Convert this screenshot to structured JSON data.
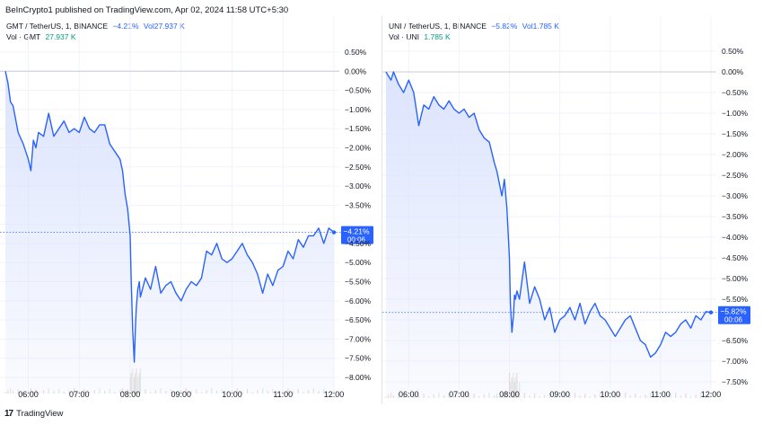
{
  "header": "BeInCrypto1 published on TradingView.com, Apr 02, 2024 11:58 UTC+5:30",
  "footer": {
    "logo": "17",
    "brand": "TradingView"
  },
  "colors": {
    "line": "#2962ff",
    "fill_top": "#dce4fd",
    "grid": "#f0f3fa",
    "axis_text": "#131722",
    "volume": "#089981",
    "price_label_bg": "#2962ff"
  },
  "panels": [
    {
      "id": "gmt",
      "legend": {
        "symbol": "GMT / TetherUS, 1, BINANCE",
        "change": "−4.21%",
        "vol_label_inline": "Vol",
        "vol_value_inline": "27.937 K",
        "vol_label": "Vol · GMT",
        "vol_value": "27.937 K"
      },
      "price_label": {
        "value": "−4.21%",
        "time": "00:06"
      }
    },
    {
      "id": "uni",
      "legend": {
        "symbol": "UNI / TetherUS, 1, BINANCE",
        "change": "−5.82%",
        "vol_label_inline": "Vol",
        "vol_value_inline": "1.785 K",
        "vol_label": "Vol · UNI",
        "vol_value": "1.785 K"
      },
      "price_label": {
        "value": "−5.82%",
        "time": "00:06"
      }
    }
  ],
  "chart_data": [
    {
      "type": "line",
      "title": "GMT / TetherUS, 1, BINANCE",
      "yunit": "%",
      "ylim": [
        -8.0,
        0.5
      ],
      "yticks": [
        "0.50%",
        "0.00%",
        "−0.50%",
        "−1.00%",
        "−1.50%",
        "−2.00%",
        "−2.50%",
        "−3.00%",
        "−3.50%",
        "−4.00%",
        "−4.50%",
        "−5.00%",
        "−5.50%",
        "−6.00%",
        "−6.50%",
        "−7.00%",
        "−7.50%",
        "−8.00%"
      ],
      "ytick_values": [
        0.5,
        0,
        -0.5,
        -1,
        -1.5,
        -2,
        -2.5,
        -3,
        -3.5,
        -4,
        -4.5,
        -5,
        -5.5,
        -6,
        -6.5,
        -7,
        -7.5,
        -8
      ],
      "xticks": [
        "06:00",
        "07:00",
        "08:00",
        "09:00",
        "10:00",
        "11:00",
        "12:00"
      ],
      "xtick_values": [
        6,
        7,
        8,
        9,
        10,
        11,
        12
      ],
      "xlim": [
        5.55,
        12.0
      ],
      "last_value": -4.21,
      "x": [
        5.55,
        5.6,
        5.65,
        5.7,
        5.8,
        5.9,
        6.0,
        6.05,
        6.1,
        6.15,
        6.2,
        6.3,
        6.4,
        6.5,
        6.6,
        6.7,
        6.8,
        6.9,
        7.0,
        7.1,
        7.2,
        7.3,
        7.4,
        7.5,
        7.6,
        7.7,
        7.8,
        7.85,
        7.9,
        7.95,
        8.0,
        8.02,
        8.05,
        8.08,
        8.1,
        8.12,
        8.15,
        8.18,
        8.2,
        8.3,
        8.4,
        8.5,
        8.6,
        8.7,
        8.8,
        8.9,
        9.0,
        9.1,
        9.2,
        9.3,
        9.4,
        9.5,
        9.6,
        9.7,
        9.8,
        9.9,
        10.0,
        10.1,
        10.2,
        10.3,
        10.4,
        10.5,
        10.6,
        10.7,
        10.8,
        10.9,
        11.0,
        11.1,
        11.2,
        11.3,
        11.4,
        11.5,
        11.6,
        11.7,
        11.8,
        11.9,
        12.0
      ],
      "y": [
        0.0,
        -0.3,
        -0.8,
        -0.9,
        -1.6,
        -1.9,
        -2.3,
        -2.6,
        -1.8,
        -2.0,
        -1.6,
        -1.7,
        -1.1,
        -1.7,
        -1.5,
        -1.3,
        -1.6,
        -1.5,
        -1.6,
        -1.2,
        -1.5,
        -1.6,
        -1.4,
        -1.4,
        -1.9,
        -2.1,
        -2.3,
        -2.6,
        -3.2,
        -3.6,
        -4.3,
        -5.5,
        -6.8,
        -7.6,
        -6.8,
        -6.2,
        -5.7,
        -5.5,
        -5.9,
        -5.4,
        -5.7,
        -5.1,
        -5.8,
        -5.6,
        -5.5,
        -5.8,
        -6.0,
        -5.7,
        -5.5,
        -5.6,
        -5.4,
        -4.7,
        -4.8,
        -4.5,
        -4.9,
        -5.0,
        -4.9,
        -4.7,
        -4.5,
        -4.8,
        -5.0,
        -5.3,
        -5.8,
        -5.3,
        -5.6,
        -5.2,
        -5.1,
        -4.7,
        -4.9,
        -4.4,
        -4.6,
        -4.3,
        -4.3,
        -4.1,
        -4.5,
        -4.1,
        -4.21
      ]
    },
    {
      "type": "line",
      "title": "UNI / TetherUS, 1, BINANCE",
      "yunit": "%",
      "ylim": [
        -7.5,
        0.5
      ],
      "yticks": [
        "0.50%",
        "0.00%",
        "−0.50%",
        "−1.00%",
        "−1.50%",
        "−2.00%",
        "−2.50%",
        "−3.00%",
        "−3.50%",
        "−4.00%",
        "−4.50%",
        "−5.00%",
        "−5.50%",
        "−6.00%",
        "−6.50%",
        "−7.00%",
        "−7.50%"
      ],
      "ytick_values": [
        0.5,
        0,
        -0.5,
        -1,
        -1.5,
        -2,
        -2.5,
        -3,
        -3.5,
        -4,
        -4.5,
        -5,
        -5.5,
        -6,
        -6.5,
        -7,
        -7.5
      ],
      "xticks": [
        "06:00",
        "07:00",
        "08:00",
        "09:00",
        "10:00",
        "11:00",
        "12:00"
      ],
      "xtick_values": [
        6,
        7,
        8,
        9,
        10,
        11,
        12
      ],
      "xlim": [
        5.55,
        12.0
      ],
      "last_value": -5.82,
      "x": [
        5.55,
        5.6,
        5.65,
        5.7,
        5.8,
        5.9,
        6.0,
        6.1,
        6.2,
        6.3,
        6.4,
        6.5,
        6.6,
        6.7,
        6.8,
        6.9,
        7.0,
        7.1,
        7.2,
        7.3,
        7.4,
        7.5,
        7.6,
        7.7,
        7.75,
        7.8,
        7.85,
        7.9,
        7.95,
        8.0,
        8.02,
        8.05,
        8.08,
        8.1,
        8.12,
        8.15,
        8.2,
        8.3,
        8.4,
        8.5,
        8.6,
        8.7,
        8.8,
        8.9,
        9.0,
        9.1,
        9.2,
        9.3,
        9.4,
        9.5,
        9.6,
        9.7,
        9.8,
        9.9,
        10.0,
        10.1,
        10.2,
        10.3,
        10.4,
        10.5,
        10.6,
        10.7,
        10.8,
        10.9,
        11.0,
        11.1,
        11.2,
        11.3,
        11.4,
        11.5,
        11.6,
        11.7,
        11.8,
        11.9,
        12.0
      ],
      "y": [
        0.0,
        -0.1,
        -0.2,
        0.0,
        -0.3,
        -0.5,
        -0.2,
        -0.5,
        -1.3,
        -0.8,
        -0.9,
        -0.6,
        -0.8,
        -0.9,
        -0.7,
        -0.9,
        -1.0,
        -0.9,
        -1.1,
        -1.0,
        -1.4,
        -1.6,
        -1.7,
        -2.2,
        -2.4,
        -2.7,
        -3.0,
        -2.6,
        -3.3,
        -4.5,
        -5.6,
        -6.3,
        -5.9,
        -5.4,
        -5.5,
        -5.3,
        -5.5,
        -4.6,
        -5.6,
        -5.2,
        -5.5,
        -6.0,
        -5.7,
        -6.3,
        -6.0,
        -5.9,
        -5.7,
        -6.0,
        -5.6,
        -6.1,
        -5.8,
        -5.6,
        -5.9,
        -6.0,
        -6.2,
        -6.4,
        -6.2,
        -6.0,
        -5.9,
        -6.2,
        -6.5,
        -6.6,
        -6.9,
        -6.8,
        -6.6,
        -6.3,
        -6.4,
        -6.3,
        -6.1,
        -6.0,
        -6.2,
        -5.9,
        -6.0,
        -5.8,
        -5.82
      ]
    }
  ]
}
